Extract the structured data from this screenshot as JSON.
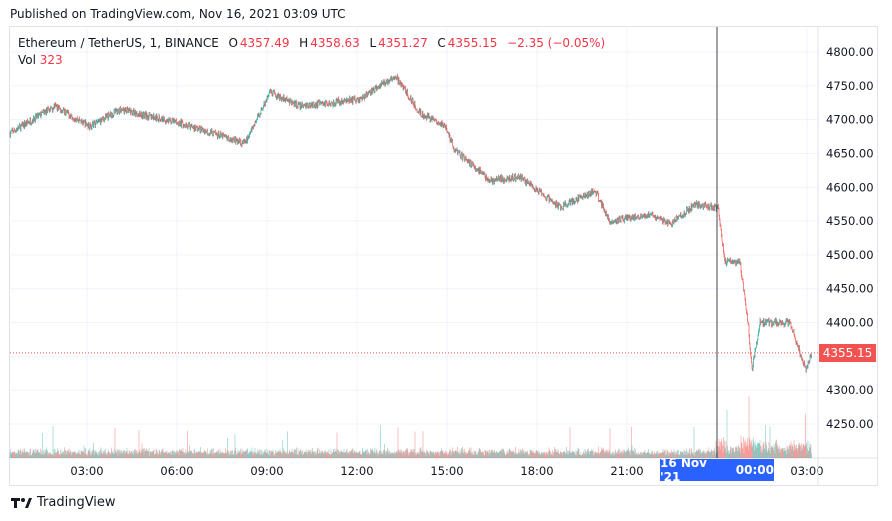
{
  "header": {
    "published": "Published on TradingView.com, Nov 16, 2021 03:09 UTC"
  },
  "legend": {
    "symbol": "Ethereum / TetherUS, 1, BINANCE",
    "o_label": "O",
    "open": "4357.49",
    "h_label": "H",
    "high": "4358.63",
    "l_label": "L",
    "low": "4351.27",
    "c_label": "C",
    "close": "4355.15",
    "change": "−2.35 (−0.05%)",
    "vol_label": "Vol",
    "vol": "323"
  },
  "colors": {
    "up": "#26a69a",
    "down": "#ef5350",
    "crosshair": "#2962ff",
    "price_tag": "#f05350"
  },
  "footer": {
    "brand": "TradingView"
  },
  "crosshair": {
    "date_label": "16 Nov '21",
    "time_label": "00:00"
  },
  "chart_data": {
    "type": "candlestick",
    "interval": "1",
    "ylim": [
      4205,
      4835
    ],
    "y_ticks": [
      "4800.00",
      "4750.00",
      "4700.00",
      "4650.00",
      "4600.00",
      "4550.00",
      "4500.00",
      "4450.00",
      "4400.00",
      "4350.00",
      "4300.00",
      "4250.00"
    ],
    "x_ticks": [
      "03:00",
      "06:00",
      "09:00",
      "12:00",
      "15:00",
      "18:00",
      "21:00",
      "00:00",
      "03:00"
    ],
    "last_price": "4355.15",
    "price_path": [
      [
        "15 00:26",
        4680
      ],
      [
        "15 01:56",
        4720
      ],
      [
        "15 03:06",
        4690
      ],
      [
        "15 04:06",
        4715
      ],
      [
        "15 06:06",
        4695
      ],
      [
        "15 08:16",
        4665
      ],
      [
        "15 09:06",
        4740
      ],
      [
        "15 10:06",
        4720
      ],
      [
        "15 12:06",
        4730
      ],
      [
        "15 13:16",
        4765
      ],
      [
        "15 14:06",
        4710
      ],
      [
        "15 14:56",
        4690
      ],
      [
        "15 15:16",
        4655
      ],
      [
        "15 16:26",
        4610
      ],
      [
        "15 17:26",
        4615
      ],
      [
        "15 18:46",
        4570
      ],
      [
        "15 19:56",
        4595
      ],
      [
        "15 20:26",
        4550
      ],
      [
        "15 21:46",
        4560
      ],
      [
        "15 22:26",
        4545
      ],
      [
        "15 23:16",
        4575
      ],
      [
        "16 00:02",
        4570
      ],
      [
        "16 00:16",
        4490
      ],
      [
        "16 00:46",
        4490
      ],
      [
        "16 01:02",
        4400
      ],
      [
        "16 01:10",
        4330
      ],
      [
        "16 01:26",
        4400
      ],
      [
        "16 02:26",
        4400
      ],
      [
        "16 02:58",
        4330
      ],
      [
        "16 03:09",
        4355
      ]
    ]
  }
}
